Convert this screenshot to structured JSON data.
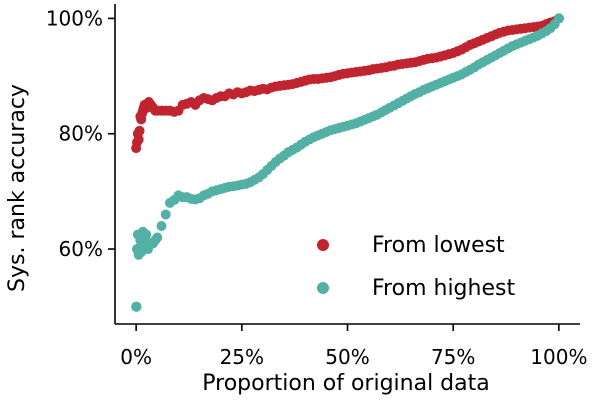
{
  "chart_data": {
    "type": "scatter",
    "xlabel": "Proportion of original data",
    "ylabel": "Sys. rank accuracy",
    "xlim": [
      -0.05,
      1.05
    ],
    "ylim": [
      0.47,
      1.025
    ],
    "x_ticks": [
      {
        "value": 0,
        "label": "0%"
      },
      {
        "value": 0.25,
        "label": "25%"
      },
      {
        "value": 0.5,
        "label": "50%"
      },
      {
        "value": 0.75,
        "label": "75%"
      },
      {
        "value": 1,
        "label": "100%"
      }
    ],
    "y_ticks": [
      {
        "value": 0.6,
        "label": "60%"
      },
      {
        "value": 0.8,
        "label": "80%"
      },
      {
        "value": 1,
        "label": "100%"
      }
    ],
    "grid": false,
    "legend_position": "bottom-right",
    "series": [
      {
        "name": "From lowest",
        "color": "#c0242f",
        "x": [
          0.0,
          0.002,
          0.004,
          0.006,
          0.008,
          0.01,
          0.012,
          0.014,
          0.016,
          0.018,
          0.02,
          0.025,
          0.03,
          0.035,
          0.04,
          0.045,
          0.05,
          0.06,
          0.07,
          0.08,
          0.09,
          0.1,
          0.11,
          0.12,
          0.13,
          0.14,
          0.15,
          0.16,
          0.17,
          0.18,
          0.19,
          0.2,
          0.21,
          0.22,
          0.23,
          0.24,
          0.25,
          0.26,
          0.27,
          0.28,
          0.29,
          0.3,
          0.31,
          0.32,
          0.33,
          0.34,
          0.35,
          0.36,
          0.37,
          0.38,
          0.39,
          0.4,
          0.41,
          0.42,
          0.43,
          0.44,
          0.45,
          0.46,
          0.47,
          0.48,
          0.49,
          0.5,
          0.51,
          0.52,
          0.53,
          0.54,
          0.55,
          0.56,
          0.57,
          0.58,
          0.59,
          0.6,
          0.61,
          0.62,
          0.63,
          0.64,
          0.65,
          0.66,
          0.67,
          0.68,
          0.69,
          0.7,
          0.71,
          0.72,
          0.73,
          0.74,
          0.75,
          0.76,
          0.77,
          0.78,
          0.79,
          0.8,
          0.81,
          0.82,
          0.83,
          0.84,
          0.85,
          0.86,
          0.87,
          0.88,
          0.89,
          0.9,
          0.91,
          0.92,
          0.93,
          0.94,
          0.95,
          0.96,
          0.97,
          0.98,
          0.99,
          1.0
        ],
        "y": [
          0.775,
          0.785,
          0.8,
          0.79,
          0.805,
          0.83,
          0.825,
          0.835,
          0.84,
          0.845,
          0.85,
          0.845,
          0.855,
          0.85,
          0.845,
          0.84,
          0.84,
          0.84,
          0.84,
          0.84,
          0.838,
          0.84,
          0.85,
          0.852,
          0.855,
          0.85,
          0.858,
          0.862,
          0.86,
          0.858,
          0.862,
          0.865,
          0.865,
          0.87,
          0.868,
          0.872,
          0.87,
          0.872,
          0.875,
          0.874,
          0.876,
          0.878,
          0.877,
          0.88,
          0.882,
          0.883,
          0.884,
          0.885,
          0.886,
          0.888,
          0.89,
          0.892,
          0.894,
          0.895,
          0.895,
          0.896,
          0.897,
          0.898,
          0.9,
          0.902,
          0.904,
          0.905,
          0.906,
          0.907,
          0.908,
          0.909,
          0.91,
          0.912,
          0.913,
          0.914,
          0.915,
          0.917,
          0.918,
          0.92,
          0.921,
          0.922,
          0.923,
          0.924,
          0.926,
          0.928,
          0.93,
          0.931,
          0.932,
          0.934,
          0.936,
          0.938,
          0.94,
          0.943,
          0.946,
          0.95,
          0.954,
          0.957,
          0.96,
          0.963,
          0.966,
          0.969,
          0.972,
          0.975,
          0.977,
          0.979,
          0.98,
          0.981,
          0.982,
          0.983,
          0.984,
          0.985,
          0.986,
          0.987,
          0.99,
          0.993,
          0.995,
          1.0
        ]
      },
      {
        "name": "From highest",
        "color": "#52b0a4",
        "x": [
          0.0,
          0.001,
          0.002,
          0.004,
          0.006,
          0.008,
          0.01,
          0.012,
          0.014,
          0.016,
          0.018,
          0.02,
          0.022,
          0.024,
          0.026,
          0.028,
          0.03,
          0.035,
          0.04,
          0.045,
          0.05,
          0.06,
          0.07,
          0.08,
          0.09,
          0.1,
          0.11,
          0.12,
          0.13,
          0.14,
          0.15,
          0.16,
          0.17,
          0.18,
          0.19,
          0.2,
          0.21,
          0.22,
          0.23,
          0.24,
          0.25,
          0.26,
          0.27,
          0.28,
          0.29,
          0.3,
          0.31,
          0.32,
          0.33,
          0.34,
          0.35,
          0.36,
          0.37,
          0.38,
          0.39,
          0.4,
          0.41,
          0.42,
          0.43,
          0.44,
          0.45,
          0.46,
          0.47,
          0.48,
          0.49,
          0.5,
          0.51,
          0.52,
          0.53,
          0.54,
          0.55,
          0.56,
          0.57,
          0.58,
          0.59,
          0.6,
          0.61,
          0.62,
          0.63,
          0.64,
          0.65,
          0.66,
          0.67,
          0.68,
          0.69,
          0.7,
          0.71,
          0.72,
          0.73,
          0.74,
          0.75,
          0.76,
          0.77,
          0.78,
          0.79,
          0.8,
          0.81,
          0.82,
          0.83,
          0.84,
          0.85,
          0.86,
          0.87,
          0.88,
          0.89,
          0.9,
          0.91,
          0.92,
          0.93,
          0.94,
          0.95,
          0.96,
          0.97,
          0.98,
          0.99,
          1.0
        ],
        "y": [
          0.5,
          0.5,
          0.6,
          0.625,
          0.59,
          0.6,
          0.615,
          0.595,
          0.61,
          0.63,
          0.6,
          0.62,
          0.605,
          0.625,
          0.61,
          0.6,
          0.605,
          0.61,
          0.61,
          0.615,
          0.62,
          0.64,
          0.66,
          0.68,
          0.685,
          0.693,
          0.69,
          0.69,
          0.687,
          0.686,
          0.688,
          0.693,
          0.696,
          0.7,
          0.702,
          0.704,
          0.706,
          0.708,
          0.709,
          0.71,
          0.712,
          0.713,
          0.716,
          0.72,
          0.724,
          0.73,
          0.737,
          0.744,
          0.751,
          0.757,
          0.762,
          0.768,
          0.772,
          0.776,
          0.781,
          0.786,
          0.79,
          0.794,
          0.797,
          0.8,
          0.803,
          0.806,
          0.808,
          0.81,
          0.812,
          0.814,
          0.816,
          0.818,
          0.821,
          0.824,
          0.827,
          0.83,
          0.833,
          0.837,
          0.841,
          0.845,
          0.849,
          0.853,
          0.857,
          0.861,
          0.865,
          0.869,
          0.872,
          0.876,
          0.879,
          0.882,
          0.885,
          0.888,
          0.891,
          0.894,
          0.897,
          0.9,
          0.903,
          0.907,
          0.911,
          0.915,
          0.92,
          0.924,
          0.928,
          0.932,
          0.936,
          0.94,
          0.944,
          0.948,
          0.952,
          0.955,
          0.958,
          0.961,
          0.964,
          0.967,
          0.97,
          0.974,
          0.978,
          0.983,
          0.99,
          1.0
        ]
      }
    ]
  }
}
